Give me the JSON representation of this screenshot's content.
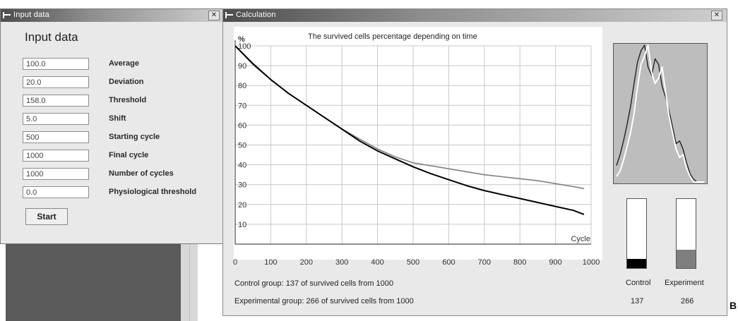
{
  "input_window": {
    "title": "Input data",
    "heading": "Input data",
    "close_glyph": "✕",
    "fields": [
      {
        "label": "Average",
        "value": "100.0"
      },
      {
        "label": "Deviation",
        "value": "20.0"
      },
      {
        "label": "Threshold",
        "value": "158.0"
      },
      {
        "label": "Shift",
        "value": "5.0"
      },
      {
        "label": "Starting cycle",
        "value": "500"
      },
      {
        "label": "Final cycle",
        "value": "1000"
      },
      {
        "label": "Number of cycles",
        "value": "1000"
      },
      {
        "label": "Physiological threshold",
        "value": "0.0"
      }
    ],
    "start_label": "Start"
  },
  "calc_window": {
    "title": "Calculation",
    "close_glyph": "✕",
    "control_status": "Control group: 137 of survived cells from 1000",
    "experimental_status": "Experimental group: 266 of survived cells from 1000",
    "control_label": "Control",
    "experiment_label": "Experiment",
    "control_value": "137",
    "experiment_value": "266",
    "control_bar_fraction": 0.137,
    "experiment_bar_fraction": 0.266,
    "control_color": "#000000",
    "experiment_color": "#7f7f7f"
  },
  "figure_letter": "B",
  "chart_data": [
    {
      "type": "line",
      "title": "The survived cells percentage depending on time",
      "xlabel": "Cycle",
      "ylabel": "%",
      "xlim": [
        0,
        1000
      ],
      "ylim": [
        0,
        100
      ],
      "x_ticks": [
        "0",
        "100",
        "200",
        "300",
        "400",
        "500",
        "600",
        "700",
        "800",
        "900",
        "1000"
      ],
      "y_ticks": [
        "100",
        "90",
        "80",
        "70",
        "60",
        "50",
        "40",
        "30",
        "20",
        "10"
      ],
      "grid": true,
      "series": [
        {
          "color": "#000000",
          "x": [
            0,
            50,
            100,
            150,
            200,
            250,
            300,
            350,
            400,
            450,
            500,
            550,
            600,
            650,
            700,
            750,
            800,
            850,
            900,
            950,
            980
          ],
          "y": [
            100,
            91,
            83,
            76,
            70,
            64,
            58,
            52,
            47,
            43,
            39,
            35.5,
            32.5,
            29.5,
            27,
            25,
            23,
            21,
            19,
            17,
            15
          ]
        },
        {
          "color": "#7f7f7f",
          "x": [
            0,
            50,
            100,
            150,
            200,
            250,
            300,
            350,
            400,
            450,
            500,
            550,
            600,
            650,
            700,
            750,
            800,
            850,
            900,
            950,
            980
          ],
          "y": [
            100,
            90.5,
            83,
            76,
            70,
            64,
            58,
            53,
            48,
            44,
            41,
            39.5,
            38,
            36.5,
            35,
            34,
            33,
            32,
            30.5,
            29,
            28
          ]
        }
      ]
    },
    {
      "type": "line",
      "grid": false,
      "series": [
        {
          "color": "#222222",
          "x": [
            0,
            1,
            2,
            3,
            4,
            5,
            6,
            7,
            8,
            9,
            10,
            11,
            12,
            13,
            14,
            15,
            16,
            17,
            18,
            19,
            20,
            21,
            22,
            23,
            24,
            25
          ],
          "y": [
            12,
            20,
            30,
            42,
            55,
            72,
            88,
            96,
            100,
            84,
            78,
            90,
            86,
            70,
            62,
            52,
            40,
            28,
            30,
            24,
            14,
            6,
            2,
            0,
            0,
            0
          ]
        },
        {
          "color": "#ffffff",
          "x": [
            0,
            1,
            2,
            3,
            4,
            5,
            6,
            7,
            8,
            9,
            10,
            11,
            12,
            13,
            14,
            15,
            16,
            17,
            18,
            19,
            20,
            21,
            22,
            23,
            24,
            25
          ],
          "y": [
            4,
            8,
            16,
            26,
            36,
            50,
            70,
            86,
            92,
            100,
            80,
            72,
            76,
            84,
            66,
            48,
            36,
            24,
            18,
            20,
            10,
            4,
            0,
            0,
            0,
            0
          ]
        }
      ]
    }
  ]
}
